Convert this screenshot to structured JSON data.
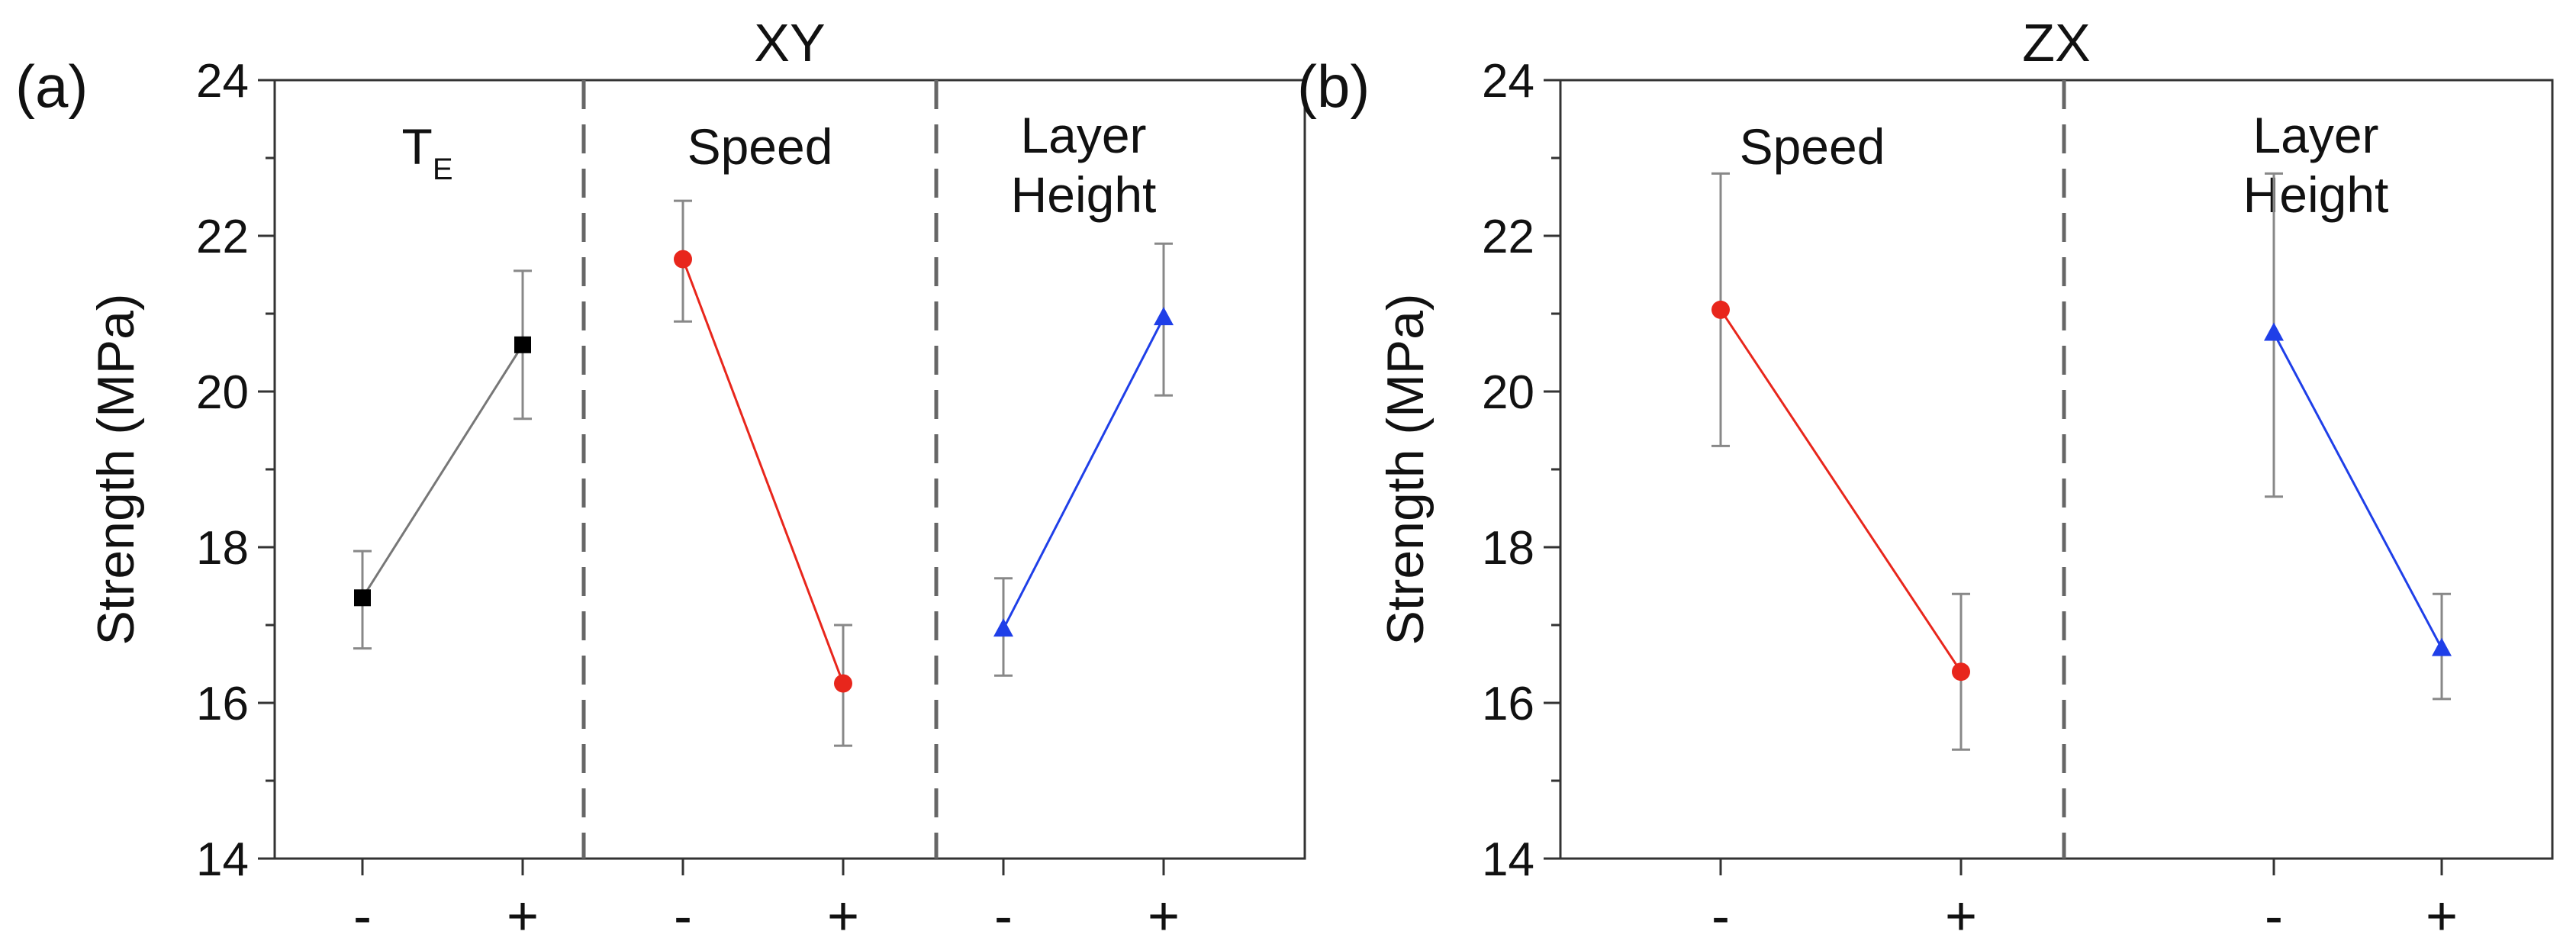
{
  "chart_data": [
    {
      "type": "line",
      "panel_label": "(a)",
      "title": "XY",
      "xlabel": "",
      "ylabel": "Strength (MPa)",
      "ylim": [
        14,
        24
      ],
      "yticks": [
        "14",
        "16",
        "18",
        "20",
        "22",
        "24"
      ],
      "groups": [
        {
          "label": "T",
          "label_sub": "E",
          "color": "#000000",
          "marker": "square",
          "levels": [
            "-",
            "+"
          ],
          "values": [
            17.35,
            20.6
          ],
          "errors": [
            [
              16.7,
              17.95
            ],
            [
              19.65,
              21.55
            ]
          ]
        },
        {
          "label": "Speed",
          "label_sub": "",
          "color": "#e8261c",
          "marker": "circle",
          "levels": [
            "-",
            "+"
          ],
          "values": [
            21.7,
            16.25
          ],
          "errors": [
            [
              20.9,
              22.45
            ],
            [
              15.45,
              17.0
            ]
          ]
        },
        {
          "label": "Layer Height",
          "label_sub": "",
          "color": "#1f3fe8",
          "marker": "triangle",
          "levels": [
            "-",
            "+"
          ],
          "values": [
            16.95,
            20.95
          ],
          "errors": [
            [
              16.35,
              17.6
            ],
            [
              19.95,
              21.9
            ]
          ]
        }
      ]
    },
    {
      "type": "line",
      "panel_label": "(b)",
      "title": "ZX",
      "xlabel": "",
      "ylabel": "Strength (MPa)",
      "ylim": [
        14,
        24
      ],
      "yticks": [
        "14",
        "16",
        "18",
        "20",
        "22",
        "24"
      ],
      "groups": [
        {
          "label": "Speed",
          "label_sub": "",
          "color": "#e8261c",
          "marker": "circle",
          "levels": [
            "-",
            "+"
          ],
          "values": [
            21.05,
            16.4
          ],
          "errors": [
            [
              19.3,
              22.8
            ],
            [
              15.4,
              17.4
            ]
          ]
        },
        {
          "label": "Layer Height",
          "label_sub": "",
          "color": "#1f3fe8",
          "marker": "triangle",
          "levels": [
            "-",
            "+"
          ],
          "values": [
            20.75,
            16.7
          ],
          "errors": [
            [
              18.65,
              22.8
            ],
            [
              16.05,
              17.4
            ]
          ]
        }
      ]
    }
  ]
}
